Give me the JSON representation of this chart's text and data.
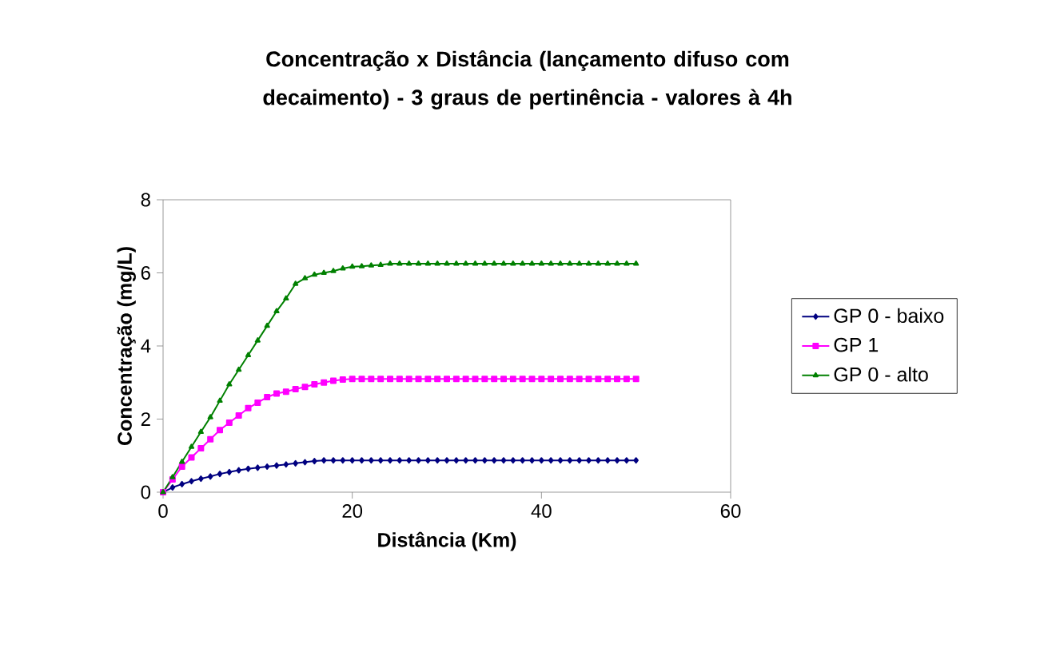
{
  "chart_data": {
    "type": "line",
    "title": "Concentração x Distância (lançamento difuso com decaimento) - 3 graus de pertinência -  valores à 4h",
    "xlabel": "Distância (Km)",
    "ylabel": "Concentração (mg/L)",
    "xlim": [
      0,
      60
    ],
    "ylim": [
      0,
      8
    ],
    "xticks": [
      0,
      20,
      40,
      60
    ],
    "yticks": [
      0,
      2,
      4,
      6,
      8
    ],
    "legend": "right",
    "x": [
      0,
      1,
      2,
      3,
      4,
      5,
      6,
      7,
      8,
      9,
      10,
      11,
      12,
      13,
      14,
      15,
      16,
      17,
      18,
      19,
      20,
      21,
      22,
      23,
      24,
      25,
      26,
      27,
      28,
      29,
      30,
      31,
      32,
      33,
      34,
      35,
      36,
      37,
      38,
      39,
      40,
      41,
      42,
      43,
      44,
      45,
      46,
      47,
      48,
      49,
      50
    ],
    "series": [
      {
        "name": "GP 0 - baixo",
        "color": "#000080",
        "marker": "diamond",
        "values": [
          0,
          0.13,
          0.22,
          0.3,
          0.37,
          0.43,
          0.5,
          0.55,
          0.6,
          0.64,
          0.67,
          0.7,
          0.73,
          0.76,
          0.79,
          0.82,
          0.85,
          0.87,
          0.87,
          0.87,
          0.87,
          0.87,
          0.87,
          0.87,
          0.87,
          0.87,
          0.87,
          0.87,
          0.87,
          0.87,
          0.87,
          0.87,
          0.87,
          0.87,
          0.87,
          0.87,
          0.87,
          0.87,
          0.87,
          0.87,
          0.87,
          0.87,
          0.87,
          0.87,
          0.87,
          0.87,
          0.87,
          0.87,
          0.87,
          0.87,
          0.87
        ]
      },
      {
        "name": "GP 1",
        "color": "#ff00ff",
        "marker": "square",
        "values": [
          0,
          0.35,
          0.7,
          0.95,
          1.2,
          1.45,
          1.7,
          1.9,
          2.1,
          2.3,
          2.45,
          2.6,
          2.7,
          2.75,
          2.82,
          2.88,
          2.95,
          3.0,
          3.05,
          3.08,
          3.1,
          3.1,
          3.1,
          3.1,
          3.1,
          3.1,
          3.1,
          3.1,
          3.1,
          3.1,
          3.1,
          3.1,
          3.1,
          3.1,
          3.1,
          3.1,
          3.1,
          3.1,
          3.1,
          3.1,
          3.1,
          3.1,
          3.1,
          3.1,
          3.1,
          3.1,
          3.1,
          3.1,
          3.1,
          3.1,
          3.1
        ]
      },
      {
        "name": "GP 0 - alto",
        "color": "#008000",
        "marker": "triangle",
        "values": [
          0,
          0.41,
          0.83,
          1.24,
          1.65,
          2.05,
          2.5,
          2.95,
          3.35,
          3.75,
          4.15,
          4.55,
          4.95,
          5.3,
          5.7,
          5.85,
          5.95,
          6.0,
          6.05,
          6.12,
          6.17,
          6.18,
          6.2,
          6.22,
          6.25,
          6.25,
          6.25,
          6.25,
          6.25,
          6.25,
          6.25,
          6.25,
          6.25,
          6.25,
          6.25,
          6.25,
          6.25,
          6.25,
          6.25,
          6.25,
          6.25,
          6.25,
          6.25,
          6.25,
          6.25,
          6.25,
          6.25,
          6.25,
          6.25,
          6.25,
          6.25
        ]
      }
    ]
  }
}
